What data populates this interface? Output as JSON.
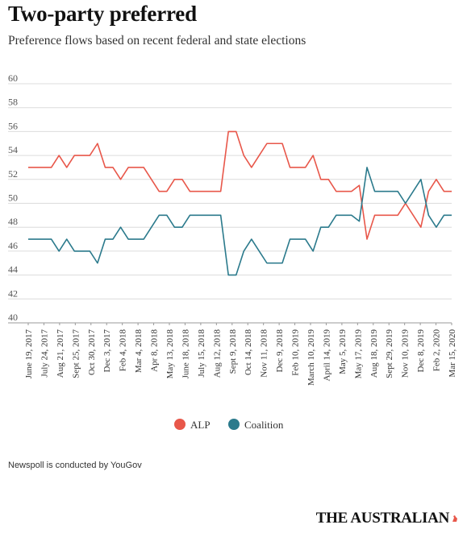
{
  "title": "Two-party preferred",
  "subtitle": "Preference flows based on recent federal and state elections",
  "footer": "Newspoll is conducted by YouGov",
  "brand": "THE AUSTRALIAN",
  "chart_data": {
    "type": "line",
    "ylim": [
      40,
      60
    ],
    "yticks": [
      40,
      42,
      44,
      46,
      48,
      50,
      52,
      54,
      56,
      58,
      60
    ],
    "grid": true,
    "legend_position": "bottom-center",
    "x_tick_labels": [
      "June 19, 2017",
      "July 24, 2017",
      "Aug 21, 2017",
      "Sept 25, 2017",
      "Oct 30, 2017",
      "Dec 3, 2017",
      "Feb 4, 2018",
      "Mar 4, 2018",
      "Apr 8, 2018",
      "May 13, 2018",
      "June 18, 2018",
      "July 15, 2018",
      "Aug 12, 2018",
      "Sept 9, 2018",
      "Oct 14, 2018",
      "Nov 11, 2018",
      "Dec 9, 2018",
      "Feb 10, 2019",
      "March 10, 2019",
      "April 14, 2019",
      "May 5, 2019",
      "May 17, 2019",
      "Aug 18, 2019",
      "Sept 29, 2019",
      "Nov 10, 2019",
      "Dec 8, 2019",
      "Feb 2, 2020",
      "Mar 15, 2020"
    ],
    "series": [
      {
        "name": "ALP",
        "color": "#e8574a",
        "values": [
          53,
          53,
          53,
          53,
          54,
          53,
          54,
          54,
          54,
          55,
          53,
          53,
          52,
          53,
          53,
          53,
          52,
          51,
          51,
          52,
          52,
          51,
          51,
          51,
          51,
          51,
          56,
          56,
          54,
          53,
          54,
          55,
          55,
          55,
          53,
          53,
          53,
          54,
          52,
          52,
          51,
          51,
          51,
          51.5,
          47,
          49,
          49,
          49,
          49,
          50,
          49,
          48,
          51,
          52,
          51,
          51
        ]
      },
      {
        "name": "Coalition",
        "color": "#2b7a8c",
        "values": [
          47,
          47,
          47,
          47,
          46,
          47,
          46,
          46,
          46,
          45,
          47,
          47,
          48,
          47,
          47,
          47,
          48,
          49,
          49,
          48,
          48,
          49,
          49,
          49,
          49,
          49,
          44,
          44,
          46,
          47,
          46,
          45,
          45,
          45,
          47,
          47,
          47,
          46,
          48,
          48,
          49,
          49,
          49,
          48.5,
          53,
          51,
          51,
          51,
          51,
          50,
          51,
          52,
          49,
          48,
          49,
          49
        ]
      }
    ]
  }
}
